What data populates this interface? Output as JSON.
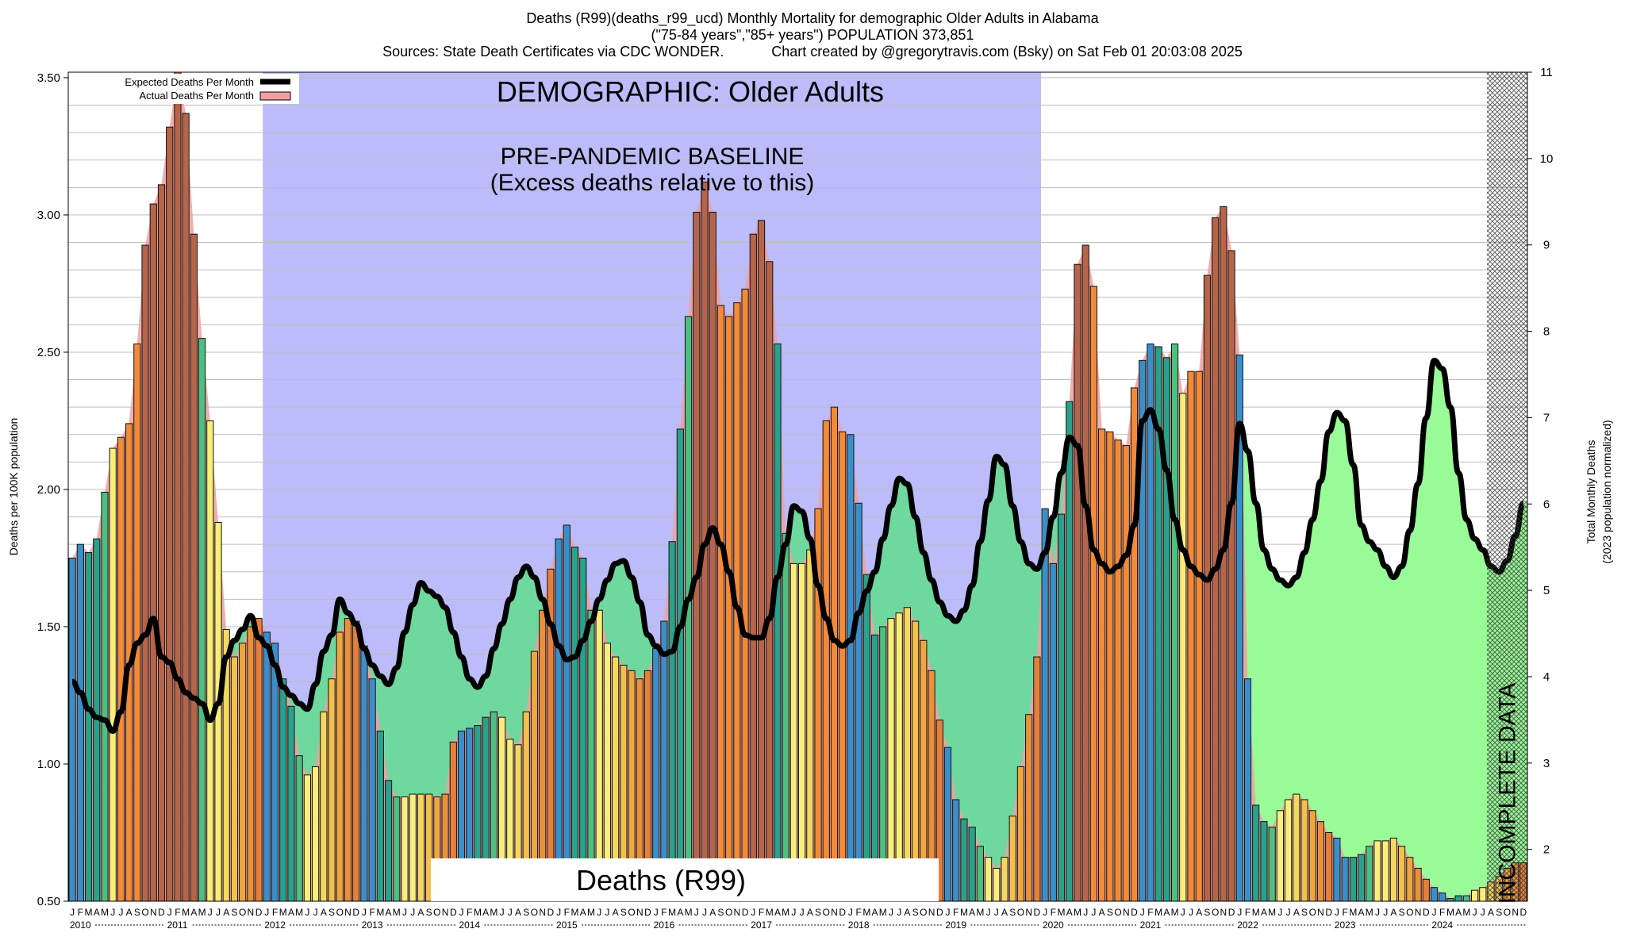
{
  "titles": {
    "line1": "Deaths (R99)(deaths_r99_ucd) Monthly Mortality for demographic Older Adults in Alabama",
    "line2": "(\"75-84 years\",\"85+ years\") POPULATION 373,851",
    "line3_left": "Sources: State Death Certificates via CDC WONDER.",
    "line3_right": "Chart created by @gregorytravis.com (Bsky) on Sat Feb 01 20:03:08 2025"
  },
  "annotations": {
    "demographic": "DEMOGRAPHIC: Older Adults",
    "baseline_1": "PRE-PANDEMIC BASELINE",
    "baseline_2": "(Excess deaths relative to this)",
    "cause": "Deaths (R99)",
    "incomplete": "INCOMPLETE DATA"
  },
  "colors": {
    "baseline_shade": "#bcbcfa",
    "excess_fill": "#98fb98",
    "deficit_fill": "#6ed89e",
    "actual_fill": "#f0a0a0",
    "expected_line": "#000000",
    "bar_seq": [
      "#3b8fc9",
      "#3b8fc9",
      "#2aa18a",
      "#2aa18a",
      "#4dbf80",
      "#f7ef79",
      "#f7ef79",
      "#f2d860",
      "#f2c04c",
      "#eea63e",
      "#e8903a",
      "#e5803a"
    ],
    "bar_hot": "#f28a37",
    "bar_very_hot": "#b5654a"
  },
  "chart_data": {
    "type": "bar",
    "xlabel": "",
    "ylabel": "Deaths per 100K population",
    "ylabel_right": "Total Monthly Deaths\n(2023 population normalized)",
    "ylim": [
      0.5,
      3.52
    ],
    "y2lim": [
      1.4,
      11
    ],
    "yticks": [
      "0.50",
      "1.00",
      "1.50",
      "2.00",
      "2.50",
      "3.00",
      "3.50"
    ],
    "y2ticks": [
      "2",
      "3",
      "4",
      "5",
      "6",
      "7",
      "8",
      "9",
      "10",
      "11"
    ],
    "grid": true,
    "legend_position": "top-left",
    "legend": [
      "Expected Deaths Per Month",
      "Actual Deaths Per Month"
    ],
    "month_letters": [
      "J",
      "F",
      "M",
      "A",
      "M",
      "J",
      "J",
      "A",
      "S",
      "O",
      "N",
      "D"
    ],
    "years": [
      "2010",
      "2011",
      "2012",
      "2013",
      "2014",
      "2015",
      "2016",
      "2017",
      "2018",
      "2019",
      "2020",
      "2021",
      "2022",
      "2023",
      "2024"
    ],
    "start": "2010-01",
    "baseline_period": [
      "2012-01",
      "2019-12"
    ],
    "incomplete_period": [
      "2024-08",
      "2024-12"
    ],
    "series": [
      {
        "name": "Actual Deaths Per Month",
        "values": [
          1.75,
          1.8,
          1.77,
          1.82,
          1.99,
          2.15,
          2.19,
          2.24,
          2.53,
          2.89,
          3.04,
          3.11,
          3.32,
          3.52,
          3.37,
          2.93,
          2.55,
          2.25,
          1.88,
          1.49,
          1.39,
          1.44,
          1.5,
          1.53,
          1.48,
          1.44,
          1.31,
          1.21,
          1.03,
          0.96,
          0.99,
          1.19,
          1.31,
          1.48,
          1.53,
          1.52,
          1.43,
          1.31,
          1.12,
          0.94,
          0.88,
          0.88,
          0.89,
          0.89,
          0.89,
          0.88,
          0.89,
          1.08,
          1.12,
          1.13,
          1.14,
          1.17,
          1.19,
          1.17,
          1.09,
          1.07,
          1.19,
          1.41,
          1.56,
          1.71,
          1.82,
          1.87,
          1.79,
          1.75,
          1.56,
          1.56,
          1.44,
          1.39,
          1.36,
          1.34,
          1.31,
          1.34,
          1.42,
          1.52,
          1.81,
          2.22,
          2.63,
          3.01,
          3.12,
          3.01,
          2.67,
          2.63,
          2.68,
          2.73,
          2.93,
          2.98,
          2.83,
          2.53,
          1.84,
          1.73,
          1.73,
          1.78,
          1.93,
          2.25,
          2.3,
          2.21,
          2.2,
          1.95,
          1.69,
          1.47,
          1.5,
          1.53,
          1.55,
          1.57,
          1.52,
          1.45,
          1.34,
          1.16,
          1.06,
          0.87,
          0.8,
          0.77,
          0.7,
          0.66,
          0.62,
          0.66,
          0.81,
          0.99,
          1.18,
          1.39,
          1.93,
          1.73,
          1.91,
          2.32,
          2.82,
          2.89,
          2.74,
          2.22,
          2.21,
          2.18,
          2.16,
          2.37,
          2.47,
          2.53,
          2.52,
          2.48,
          2.53,
          2.35,
          2.43,
          2.43,
          2.78,
          2.99,
          3.03,
          2.87,
          2.49,
          1.31,
          0.85,
          0.79,
          0.77,
          0.83,
          0.87,
          0.89,
          0.87,
          0.83,
          0.79,
          0.75,
          0.73,
          0.66,
          0.66,
          0.67,
          0.7,
          0.72,
          0.72,
          0.73,
          0.7,
          0.66,
          0.62,
          0.58,
          0.55,
          0.53,
          0.51,
          0.52,
          0.52,
          0.54,
          0.55,
          0.57,
          0.59,
          0.62,
          0.64,
          0.64
        ]
      },
      {
        "name": "Expected Deaths Per Month",
        "values": [
          1.3,
          1.26,
          1.2,
          1.17,
          1.16,
          1.12,
          1.19,
          1.36,
          1.44,
          1.47,
          1.53,
          1.39,
          1.37,
          1.31,
          1.26,
          1.24,
          1.22,
          1.16,
          1.22,
          1.39,
          1.45,
          1.49,
          1.54,
          1.46,
          1.43,
          1.36,
          1.28,
          1.25,
          1.22,
          1.2,
          1.29,
          1.41,
          1.47,
          1.6,
          1.55,
          1.51,
          1.42,
          1.36,
          1.32,
          1.29,
          1.35,
          1.48,
          1.58,
          1.66,
          1.63,
          1.61,
          1.57,
          1.48,
          1.39,
          1.31,
          1.28,
          1.32,
          1.42,
          1.51,
          1.6,
          1.68,
          1.72,
          1.68,
          1.6,
          1.51,
          1.43,
          1.38,
          1.39,
          1.45,
          1.52,
          1.6,
          1.67,
          1.73,
          1.74,
          1.68,
          1.59,
          1.47,
          1.43,
          1.4,
          1.41,
          1.5,
          1.6,
          1.68,
          1.8,
          1.86,
          1.8,
          1.7,
          1.57,
          1.47,
          1.46,
          1.46,
          1.53,
          1.68,
          1.8,
          1.94,
          1.92,
          1.82,
          1.65,
          1.53,
          1.45,
          1.43,
          1.45,
          1.55,
          1.63,
          1.7,
          1.82,
          1.94,
          2.04,
          2.02,
          1.9,
          1.77,
          1.67,
          1.59,
          1.54,
          1.52,
          1.56,
          1.65,
          1.81,
          1.96,
          2.12,
          2.09,
          1.94,
          1.81,
          1.73,
          1.71,
          1.77,
          1.9,
          2.06,
          2.19,
          2.16,
          1.94,
          1.78,
          1.73,
          1.7,
          1.72,
          1.76,
          1.87,
          2.25,
          2.29,
          2.22,
          2.07,
          1.89,
          1.78,
          1.72,
          1.69,
          1.67,
          1.71,
          1.78,
          1.95,
          2.24,
          2.14,
          1.95,
          1.78,
          1.71,
          1.67,
          1.65,
          1.68,
          1.77,
          1.89,
          2.03,
          2.21,
          2.28,
          2.25,
          2.09,
          1.87,
          1.81,
          1.78,
          1.72,
          1.68,
          1.72,
          1.85,
          2.02,
          2.26,
          2.47,
          2.44,
          2.3,
          2.06,
          1.89,
          1.82,
          1.78,
          1.72,
          1.7,
          1.74,
          1.83,
          1.95
        ]
      }
    ]
  }
}
